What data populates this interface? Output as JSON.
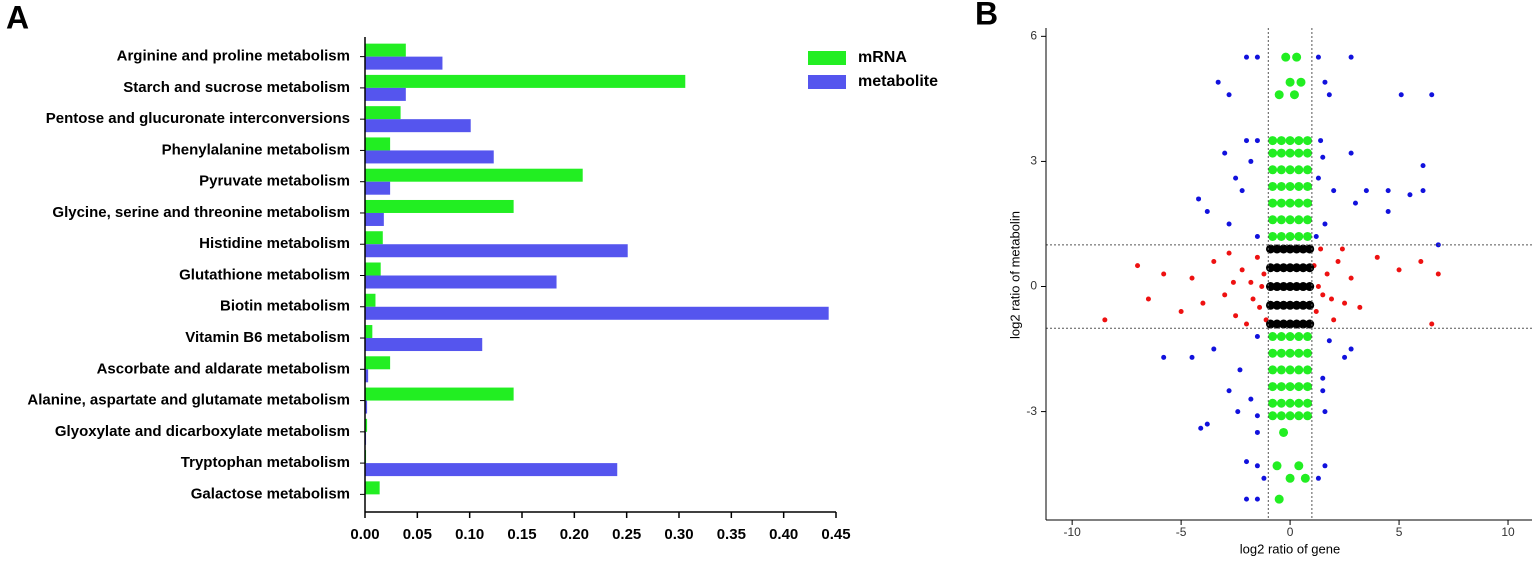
{
  "chart_data": [
    {
      "type": "bar",
      "orientation": "horizontal",
      "panel_label": "A",
      "categories": [
        "Arginine and proline metabolism",
        "Starch and sucrose metabolism",
        "Pentose and glucuronate interconversions",
        "Phenylalanine metabolism",
        "Pyruvate metabolism",
        "Glycine, serine and threonine metabolism",
        "Histidine metabolism",
        "Glutathione metabolism",
        "Biotin metabolism",
        "Vitamin B6 metabolism",
        "Ascorbate and aldarate metabolism",
        "Alanine, aspartate and glutamate metabolism",
        "Glyoxylate and dicarboxylate metabolism",
        "Tryptophan metabolism",
        "Galactose metabolism"
      ],
      "series": [
        {
          "name": "mRNA",
          "color": "#22ee22",
          "values": [
            0.039,
            0.306,
            0.034,
            0.024,
            0.208,
            0.142,
            0.017,
            0.015,
            0.01,
            0.007,
            0.024,
            0.142,
            0.002,
            0.001,
            0.014
          ]
        },
        {
          "name": "metabolite",
          "color": "#5555ee",
          "values": [
            0.074,
            0.039,
            0.101,
            0.123,
            0.024,
            0.018,
            0.251,
            0.183,
            0.443,
            0.112,
            0.003,
            0.002,
            0.001,
            0.241,
            0
          ]
        }
      ],
      "xlim": [
        0,
        0.45
      ],
      "xticks": [
        {
          "value": 0,
          "label": "0.00"
        },
        {
          "value": 0.05,
          "label": "0.05"
        },
        {
          "value": 0.1,
          "label": "0.10"
        },
        {
          "value": 0.15,
          "label": "0.15"
        },
        {
          "value": 0.2,
          "label": "0.20"
        },
        {
          "value": 0.25,
          "label": "0.25"
        },
        {
          "value": 0.3,
          "label": "0.30"
        },
        {
          "value": 0.35,
          "label": "0.35"
        },
        {
          "value": 0.4,
          "label": "0.40"
        },
        {
          "value": 0.45,
          "label": "0.45"
        }
      ],
      "legend": "upper right"
    },
    {
      "type": "scatter",
      "panel_label": "B",
      "x_label": "log2 ratio of gene",
      "y_label": "log2 ratio of metabolin",
      "xlim": [
        -11.2,
        11.1
      ],
      "ylim": [
        -5.6,
        6.2
      ],
      "xticks": [
        -10,
        -5,
        0,
        5,
        10
      ],
      "yticks": [
        -3,
        0,
        3,
        6
      ],
      "vlines": [
        -1,
        1
      ],
      "hlines": [
        -1,
        1
      ],
      "series": [
        {
          "color": "#ee1111",
          "x": [
            -8.5,
            -7,
            -6.5,
            -5.8,
            -5,
            -4.5,
            -4,
            -3.5,
            -3,
            -2.8,
            -2.5,
            -2.2,
            -2,
            -1.8,
            -1.5,
            -1.4,
            -1.2,
            -1.1,
            1.1,
            1.2,
            1.4,
            1.5,
            1.7,
            2,
            2.2,
            2.5,
            2.8,
            3.2,
            4,
            5,
            6,
            6.5,
            6.8,
            2.4,
            -2.6,
            1.3,
            -1.3,
            1.9,
            -1.7
          ],
          "y": [
            -0.8,
            0.5,
            -0.3,
            0.3,
            -0.6,
            0.2,
            -0.4,
            0.6,
            -0.2,
            0.8,
            -0.7,
            0.4,
            -0.9,
            0.1,
            0.7,
            -0.5,
            0.3,
            -0.8,
            0.5,
            -0.6,
            0.9,
            -0.2,
            0.3,
            -0.8,
            0.6,
            -0.4,
            0.2,
            -0.5,
            0.7,
            0.4,
            0.6,
            -0.9,
            0.3,
            0.9,
            0.1,
            0,
            0,
            -0.3,
            -0.3
          ]
        },
        {
          "color": "#1111dd",
          "x": [
            -2,
            -1.5,
            2.8,
            1.3,
            -3.3,
            1.6,
            -2.8,
            1.8,
            5.1,
            6.5,
            -2,
            -1.5,
            1.4,
            -3,
            -1.8,
            1.5,
            2.8,
            6.1,
            -2.5,
            1.3,
            -2.2,
            2,
            3.5,
            4.5,
            5.5,
            6.1,
            -4.2,
            -3.8,
            3,
            4.5,
            -2.8,
            1.6,
            -1.5,
            1.2,
            6.8,
            -1.5,
            1.8,
            -3.5,
            -5.8,
            -4.5,
            2.5,
            -2.3,
            1.5,
            -2.8,
            1.5,
            -2.4,
            1.6,
            -3.8,
            -1.5,
            -1.5,
            -4.1,
            -2,
            -1.5,
            -1.2,
            1.3,
            -2,
            -1.5,
            1.6,
            2.8,
            -1.8
          ],
          "y": [
            5.5,
            5.5,
            5.5,
            5.5,
            4.9,
            4.9,
            4.6,
            4.6,
            4.6,
            4.6,
            3.5,
            3.5,
            3.5,
            3.2,
            3,
            3.1,
            3.2,
            2.9,
            2.6,
            2.6,
            2.3,
            2.3,
            2.3,
            2.3,
            2.2,
            2.3,
            2.1,
            1.8,
            2,
            1.8,
            1.5,
            1.5,
            1.2,
            1.2,
            1,
            -1.2,
            -1.3,
            -1.5,
            -1.7,
            -1.7,
            -1.7,
            -2,
            -2.2,
            -2.5,
            -2.5,
            -3,
            -3,
            -3.3,
            -3.1,
            -3.5,
            -3.4,
            -4.2,
            -4.3,
            -4.6,
            -4.6,
            -5.1,
            -5.1,
            -4.3,
            -1.5,
            -2.7
          ]
        },
        {
          "color": "#22ee22",
          "x": [
            -0.8,
            -0.4,
            0,
            0.4,
            0.8,
            -0.8,
            -0.4,
            0,
            0.4,
            0.8,
            -0.8,
            -0.4,
            0,
            0.4,
            0.8,
            -0.8,
            -0.4,
            0,
            0.4,
            0.8,
            -0.8,
            -0.4,
            0,
            0.4,
            0.8,
            -0.8,
            -0.4,
            0,
            0.4,
            0.8,
            -0.8,
            -0.4,
            0,
            0.4,
            0.8,
            -0.8,
            -0.4,
            0,
            0.4,
            0.8,
            -0.8,
            -0.4,
            0,
            0.4,
            0.8,
            -0.8,
            -0.4,
            0,
            0.4,
            0.8,
            -0.8,
            -0.4,
            0,
            0.4,
            0.8,
            -0.8,
            -0.4,
            0,
            0.4,
            0.8,
            -0.8,
            -0.4,
            0,
            0.4,
            0.8,
            -0.2,
            0.3,
            0,
            0.5,
            -0.5,
            0.2,
            -0.3,
            0.4,
            -0.6,
            0,
            0.7,
            -0.5
          ],
          "y": [
            1.2,
            1.2,
            1.2,
            1.2,
            1.2,
            1.6,
            1.6,
            1.6,
            1.6,
            1.6,
            2,
            2,
            2,
            2,
            2,
            2.4,
            2.4,
            2.4,
            2.4,
            2.4,
            2.8,
            2.8,
            2.8,
            2.8,
            2.8,
            3.2,
            3.2,
            3.2,
            3.2,
            3.2,
            3.5,
            3.5,
            3.5,
            3.5,
            3.5,
            -1.2,
            -1.2,
            -1.2,
            -1.2,
            -1.2,
            -1.6,
            -1.6,
            -1.6,
            -1.6,
            -1.6,
            -2,
            -2,
            -2,
            -2,
            -2,
            -2.4,
            -2.4,
            -2.4,
            -2.4,
            -2.4,
            -2.8,
            -2.8,
            -2.8,
            -2.8,
            -2.8,
            -3.1,
            -3.1,
            -3.1,
            -3.1,
            -3.1,
            5.5,
            5.5,
            4.9,
            4.9,
            4.6,
            4.6,
            -3.5,
            -4.3,
            -4.3,
            -4.6,
            -4.6,
            -5.1
          ]
        },
        {
          "color": "#000000",
          "x": [
            -0.9,
            -0.6,
            -0.3,
            0,
            0.3,
            0.6,
            0.9,
            -0.9,
            -0.6,
            -0.3,
            0,
            0.3,
            0.6,
            0.9,
            -0.9,
            -0.6,
            -0.3,
            0,
            0.3,
            0.6,
            0.9,
            -0.9,
            -0.6,
            -0.3,
            0,
            0.3,
            0.6,
            0.9,
            -0.9,
            -0.6,
            -0.3,
            0,
            0.3,
            0.6,
            0.9
          ],
          "y": [
            -0.9,
            -0.9,
            -0.9,
            -0.9,
            -0.9,
            -0.9,
            -0.9,
            -0.45,
            -0.45,
            -0.45,
            -0.45,
            -0.45,
            -0.45,
            -0.45,
            0,
            0,
            0,
            0,
            0,
            0,
            0,
            0.45,
            0.45,
            0.45,
            0.45,
            0.45,
            0.45,
            0.45,
            0.9,
            0.9,
            0.9,
            0.9,
            0.9,
            0.9,
            0.9
          ]
        }
      ]
    }
  ]
}
